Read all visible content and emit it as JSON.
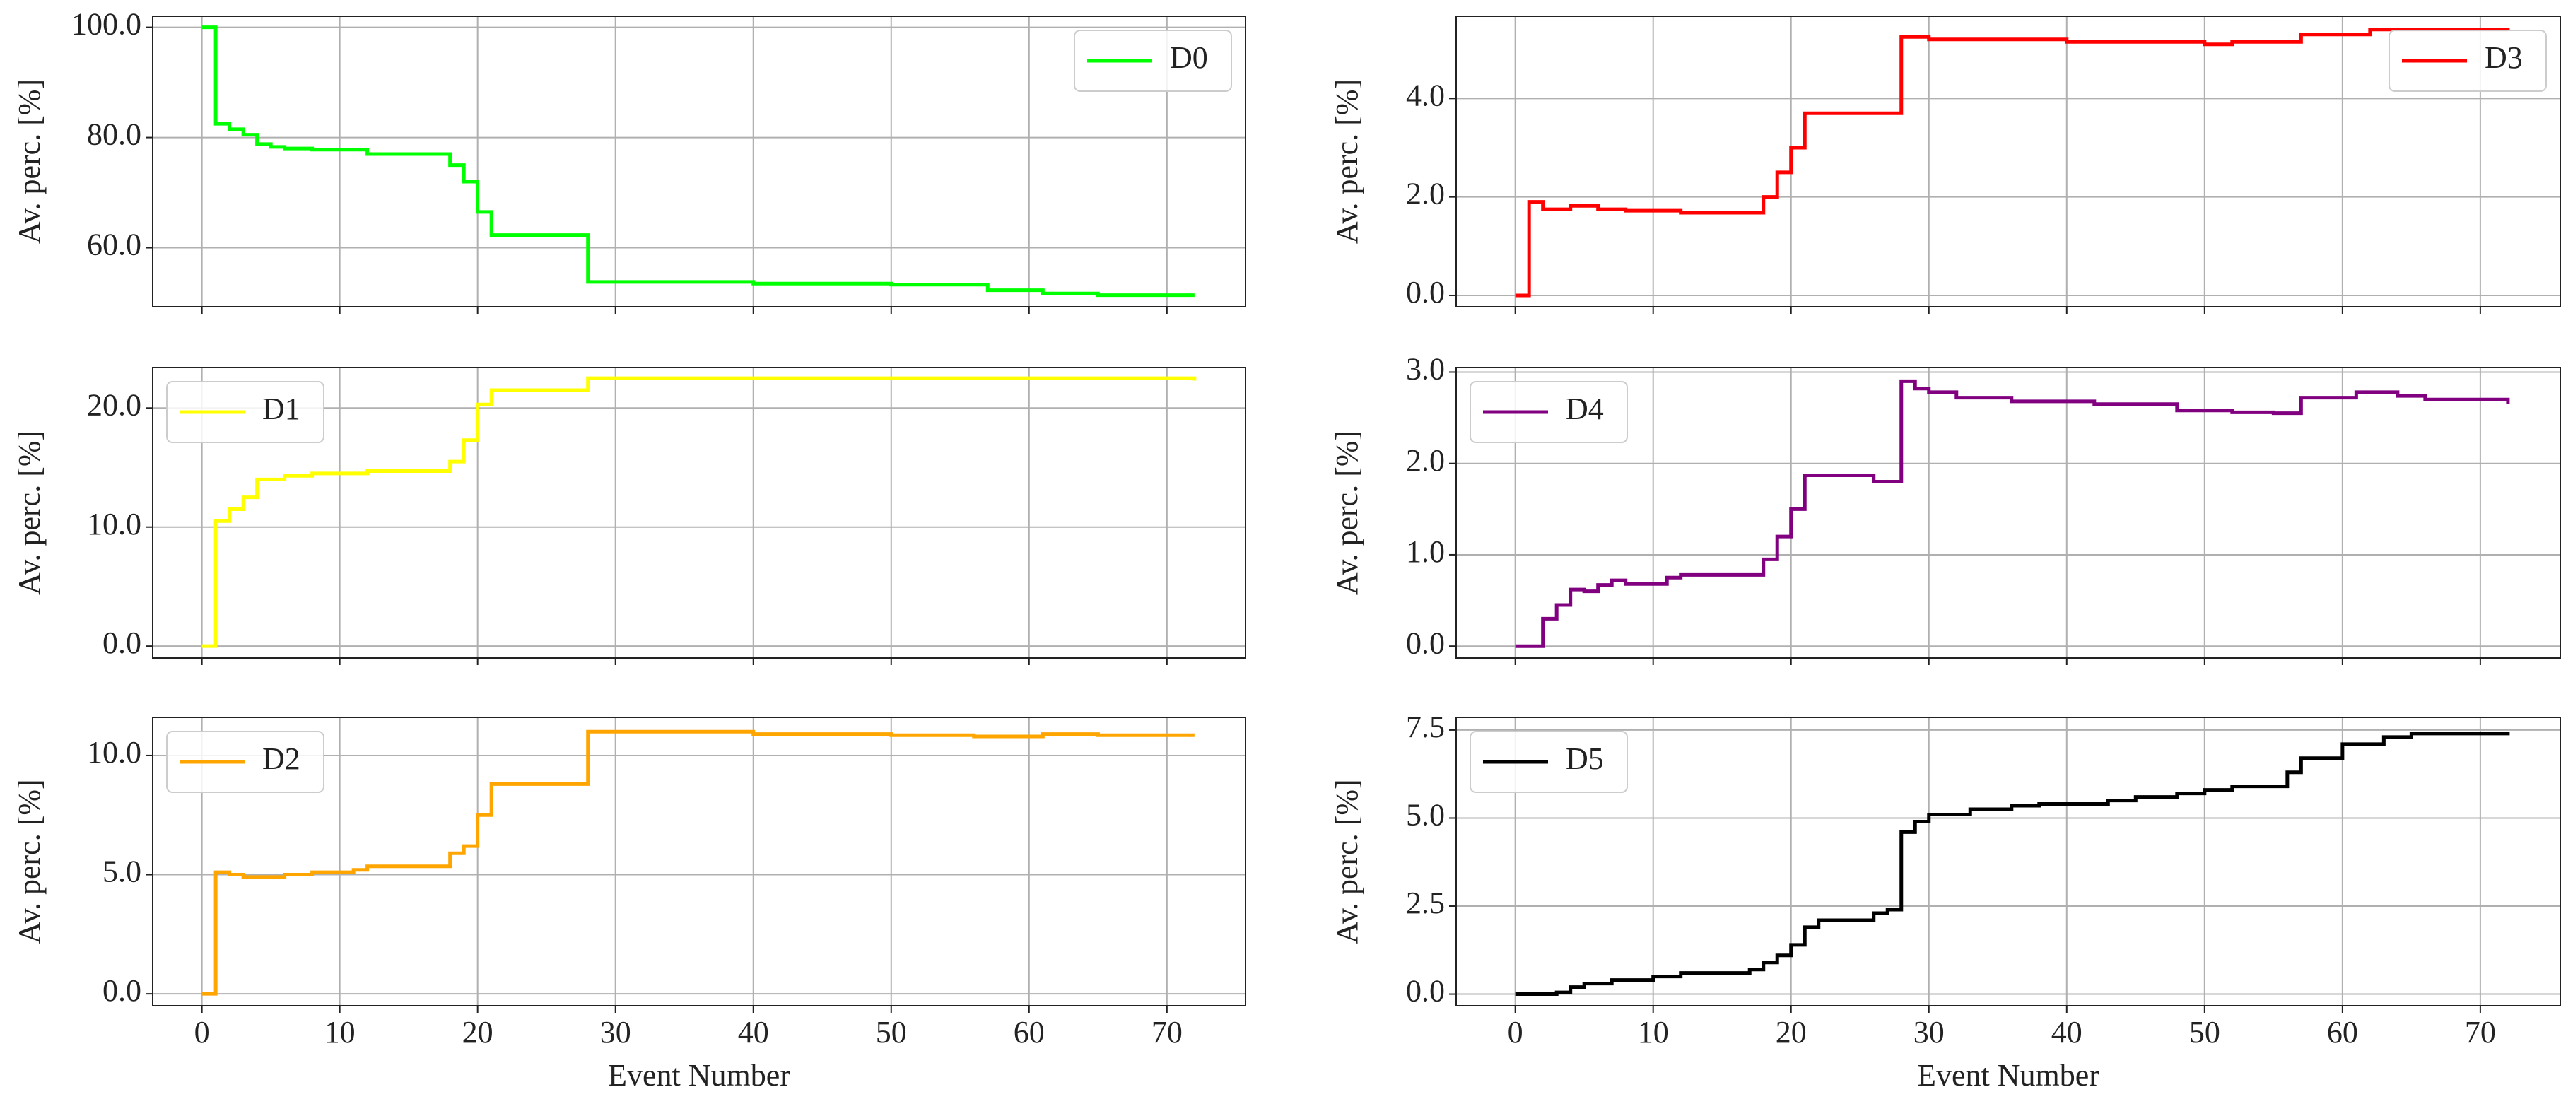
{
  "chart_data": [
    {
      "type": "line",
      "drawstyle": "steps-post",
      "grid": true,
      "legend": "upper right",
      "ylabel": "Av. perc. [%]",
      "xlim": [
        -3.57,
        75.7
      ],
      "xticks": [
        0,
        10,
        20,
        30,
        40,
        50,
        60,
        70
      ],
      "ylim": [
        49.3,
        102
      ],
      "yticks": [
        {
          "value": 60,
          "label": "60.0"
        },
        {
          "value": 80,
          "label": "80.0"
        },
        {
          "value": 100,
          "label": "100.0"
        }
      ],
      "series": [
        {
          "name": "D0",
          "color": "#00ff00",
          "x": [
            0,
            1,
            2,
            3,
            4,
            5,
            6,
            8,
            12,
            18,
            19,
            20,
            21,
            28,
            40,
            50,
            57,
            61,
            65,
            72
          ],
          "values": [
            100,
            82.5,
            81.5,
            80.5,
            78.8,
            78.3,
            78,
            77.8,
            77,
            75,
            72,
            66.5,
            62.3,
            53.8,
            53.5,
            53.3,
            52.3,
            51.7,
            51.4,
            51.4
          ]
        }
      ]
    },
    {
      "type": "line",
      "drawstyle": "steps-post",
      "grid": true,
      "legend": "upper right",
      "ylabel": "Av. perc. [%]",
      "xlim": [
        -4.29,
        75.8
      ],
      "xticks": [
        0,
        10,
        20,
        30,
        40,
        50,
        60,
        70
      ],
      "ylim": [
        -0.23,
        5.67
      ],
      "yticks": [
        {
          "value": 0,
          "label": "0.0"
        },
        {
          "value": 2,
          "label": "2.0"
        },
        {
          "value": 4,
          "label": "4.0"
        }
      ],
      "series": [
        {
          "name": "D3",
          "color": "#ff0000",
          "x": [
            0,
            1,
            2,
            4,
            6,
            8,
            12,
            18,
            19,
            20,
            21,
            28,
            30,
            40,
            50,
            52,
            57,
            62,
            72
          ],
          "values": [
            0,
            1.9,
            1.75,
            1.82,
            1.75,
            1.72,
            1.68,
            2,
            2.5,
            3,
            3.7,
            5.25,
            5.2,
            5.15,
            5.1,
            5.15,
            5.3,
            5.4,
            5.38
          ]
        }
      ]
    },
    {
      "type": "line",
      "drawstyle": "steps-post",
      "grid": true,
      "legend": "upper left",
      "ylabel": "Av. perc. [%]",
      "xlim": [
        -3.57,
        75.7
      ],
      "xticks": [
        0,
        10,
        20,
        30,
        40,
        50,
        60,
        70
      ],
      "ylim": [
        -1,
        23.4
      ],
      "yticks": [
        {
          "value": 0,
          "label": "0.0"
        },
        {
          "value": 10,
          "label": "10.0"
        },
        {
          "value": 20,
          "label": "20.0"
        }
      ],
      "series": [
        {
          "name": "D1",
          "color": "#ffff00",
          "x": [
            0,
            1,
            2,
            3,
            4,
            6,
            8,
            12,
            18,
            19,
            20,
            21,
            28,
            72
          ],
          "values": [
            0,
            10.5,
            11.5,
            12.5,
            14,
            14.3,
            14.5,
            14.7,
            15.5,
            17.3,
            20.3,
            21.5,
            22.5,
            22.3
          ]
        }
      ]
    },
    {
      "type": "line",
      "drawstyle": "steps-post",
      "grid": true,
      "legend": "upper left",
      "ylabel": "Av. perc. [%]",
      "xlim": [
        -4.29,
        75.8
      ],
      "xticks": [
        0,
        10,
        20,
        30,
        40,
        50,
        60,
        70
      ],
      "ylim": [
        -0.13,
        3.05
      ],
      "yticks": [
        {
          "value": 0,
          "label": "0.0"
        },
        {
          "value": 1,
          "label": "1.0"
        },
        {
          "value": 2,
          "label": "2.0"
        },
        {
          "value": 3,
          "label": "3.0"
        }
      ],
      "series": [
        {
          "name": "D4",
          "color": "#800080",
          "x": [
            0,
            2,
            3,
            4,
            5,
            6,
            7,
            8,
            11,
            12,
            18,
            19,
            20,
            21,
            26,
            28,
            29,
            30,
            32,
            36,
            42,
            48,
            52,
            55,
            57,
            61,
            64,
            66,
            72
          ],
          "values": [
            0,
            0.3,
            0.45,
            0.62,
            0.6,
            0.67,
            0.72,
            0.68,
            0.75,
            0.78,
            0.95,
            1.2,
            1.5,
            1.87,
            1.8,
            2.9,
            2.82,
            2.78,
            2.72,
            2.68,
            2.65,
            2.58,
            2.56,
            2.55,
            2.72,
            2.78,
            2.74,
            2.7,
            2.65
          ]
        }
      ]
    },
    {
      "type": "line",
      "drawstyle": "steps-post",
      "grid": true,
      "legend": "upper left",
      "ylabel": "Av. perc. [%]",
      "xlabel": "Event Number",
      "xlim": [
        -3.57,
        75.7
      ],
      "xticks": [
        0,
        10,
        20,
        30,
        40,
        50,
        60,
        70
      ],
      "ylim": [
        -0.5,
        11.6
      ],
      "yticks": [
        {
          "value": 0,
          "label": "0.0"
        },
        {
          "value": 5,
          "label": "5.0"
        },
        {
          "value": 10,
          "label": "10.0"
        }
      ],
      "series": [
        {
          "name": "D2",
          "color": "#ffa500",
          "x": [
            0,
            1,
            2,
            3,
            6,
            8,
            11,
            12,
            18,
            19,
            20,
            21,
            28,
            40,
            50,
            56,
            61,
            65,
            72
          ],
          "values": [
            0,
            5.1,
            5,
            4.9,
            5,
            5.1,
            5.2,
            5.35,
            5.9,
            6.2,
            7.5,
            8.8,
            11,
            10.9,
            10.85,
            10.8,
            10.9,
            10.85,
            10.85
          ]
        }
      ]
    },
    {
      "type": "line",
      "drawstyle": "steps-post",
      "grid": true,
      "legend": "upper left",
      "ylabel": "Av. perc. [%]",
      "xlabel": "Event Number",
      "xlim": [
        -4.29,
        75.8
      ],
      "xticks": [
        0,
        10,
        20,
        30,
        40,
        50,
        60,
        70
      ],
      "ylim": [
        -0.33,
        7.86
      ],
      "yticks": [
        {
          "value": 0,
          "label": "0.0"
        },
        {
          "value": 2.5,
          "label": "2.5"
        },
        {
          "value": 5,
          "label": "5.0"
        },
        {
          "value": 7.5,
          "label": "7.5"
        }
      ],
      "series": [
        {
          "name": "D5",
          "color": "#000000",
          "x": [
            0,
            3,
            4,
            5,
            7,
            10,
            12,
            17,
            18,
            19,
            20,
            21,
            22,
            26,
            27,
            28,
            29,
            30,
            33,
            36,
            38,
            43,
            45,
            48,
            50,
            52,
            56,
            57,
            60,
            63,
            65,
            72
          ],
          "values": [
            0,
            0.05,
            0.2,
            0.3,
            0.4,
            0.5,
            0.6,
            0.7,
            0.9,
            1.1,
            1.4,
            1.9,
            2.1,
            2.3,
            2.4,
            4.6,
            4.9,
            5.1,
            5.25,
            5.35,
            5.4,
            5.5,
            5.6,
            5.7,
            5.8,
            5.9,
            6.3,
            6.7,
            7.1,
            7.3,
            7.4,
            7.45
          ]
        }
      ]
    }
  ]
}
